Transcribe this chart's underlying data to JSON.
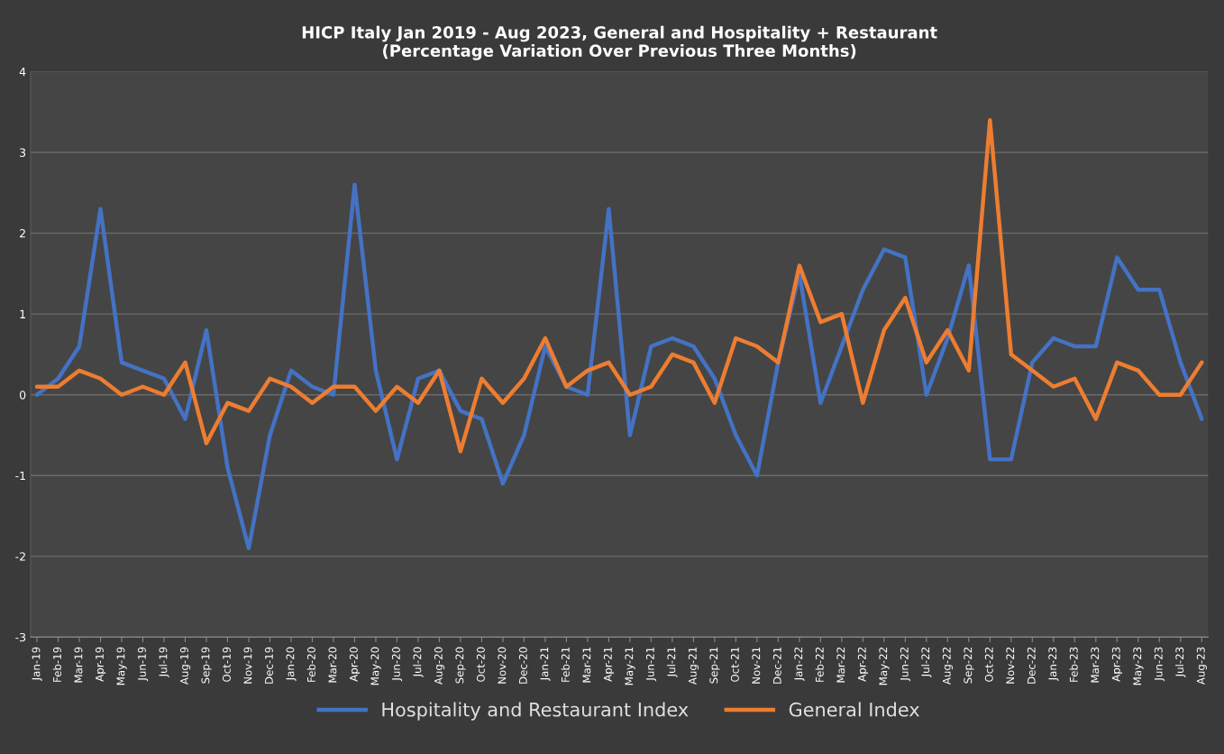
{
  "chart_data": {
    "type": "line",
    "title": "HICP Italy Jan 2019 - Aug 2023, General and Hospitality + Restaurant\n(Percentage Variation Over Previous Three Months)",
    "categories": [
      "Jan-19",
      "Feb-19",
      "Mar-19",
      "Apr-19",
      "May-19",
      "Jun-19",
      "Jul-19",
      "Aug-19",
      "Sep-19",
      "Oct-19",
      "Nov-19",
      "Dec-19",
      "Jan-20",
      "Feb-20",
      "Mar-20",
      "Apr-20",
      "May-20",
      "Jun-20",
      "Jul-20",
      "Aug-20",
      "Sep-20",
      "Oct-20",
      "Nov-20",
      "Dec-20",
      "Jan-21",
      "Feb-21",
      "Mar-21",
      "Apr-21",
      "May-21",
      "Jun-21",
      "Jul-21",
      "Aug-21",
      "Sep-21",
      "Oct-21",
      "Nov-21",
      "Dec-21",
      "Jan-22",
      "Feb-22",
      "Mar-22",
      "Apr-22",
      "May-22",
      "Jun-22",
      "Jul-22",
      "Aug-22",
      "Sep-22",
      "Oct-22",
      "Nov-22",
      "Dec-22",
      "Jan-23",
      "Feb-23",
      "Mar-23",
      "Apr-23",
      "May-23",
      "Jun-23",
      "Jul-23",
      "Aug-23"
    ],
    "series": [
      {
        "name": "Hospitality and Restaurant Index",
        "color": "#4472c4",
        "values": [
          0,
          0.2,
          0.6,
          2.3,
          0.4,
          0.3,
          0.2,
          -0.3,
          0.8,
          -0.9,
          -1.9,
          -0.5,
          0.3,
          0.1,
          0,
          2.6,
          0.3,
          -0.8,
          0.2,
          0.3,
          -0.2,
          -0.3,
          -1.1,
          -0.5,
          0.6,
          0.1,
          0,
          2.3,
          -0.5,
          0.6,
          0.7,
          0.6,
          0.2,
          -0.5,
          -1.0,
          0.4,
          1.5,
          -0.1,
          0.6,
          1.3,
          1.8,
          1.7,
          0,
          0.7,
          1.6,
          -0.8,
          -0.8,
          0.4,
          0.7,
          0.6,
          0.6,
          1.7,
          1.3,
          1.3,
          0.4,
          -0.3
        ]
      },
      {
        "name": "General Index",
        "color": "#ed7d31",
        "values": [
          0.1,
          0.1,
          0.3,
          0.2,
          0,
          0.1,
          0,
          0.4,
          -0.6,
          -0.1,
          -0.2,
          0.2,
          0.1,
          -0.1,
          0.1,
          0.1,
          -0.2,
          0.1,
          -0.1,
          0.3,
          -0.7,
          0.2,
          -0.1,
          0.2,
          0.7,
          0.1,
          0.3,
          0.4,
          0,
          0.1,
          0.5,
          0.4,
          -0.1,
          0.7,
          0.6,
          0.4,
          1.6,
          0.9,
          1.0,
          -0.1,
          0.8,
          1.2,
          0.4,
          0.8,
          0.3,
          3.4,
          0.5,
          0.3,
          0.1,
          0.2,
          -0.3,
          0.4,
          0.3,
          0,
          0,
          0.4
        ]
      }
    ],
    "ylim": [
      -3,
      4
    ],
    "yticks": [
      -3,
      -2,
      -1,
      0,
      1,
      2,
      3,
      4
    ],
    "grid": "y",
    "legend": "bottom",
    "marker": "none",
    "line_style": "solid"
  }
}
